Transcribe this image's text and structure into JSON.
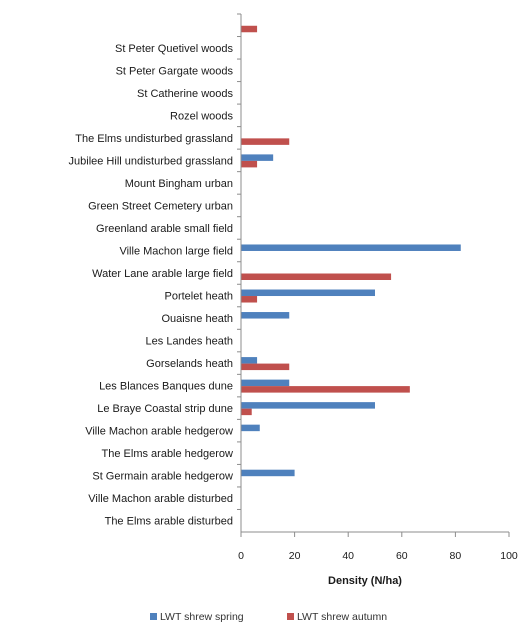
{
  "chart_data": {
    "type": "bar",
    "orientation": "horizontal",
    "title": "",
    "xlabel": "Density (N/ha)",
    "ylabel": "",
    "xlim": [
      0,
      100
    ],
    "xticks": [
      0,
      20,
      40,
      60,
      80,
      100
    ],
    "grid": false,
    "legend_position": "bottom",
    "categories": [
      "",
      "St Peter Quetivel woods",
      "St Peter Gargate woods",
      "St Catherine woods",
      "Rozel woods",
      "The Elms  undisturbed grassland",
      "Jubilee Hill undisturbed grassland",
      "Mount Bingham urban",
      "Green Street Cemetery urban",
      "Greenland arable small field",
      "Ville Machon large field",
      "Water Lane arable large field",
      "Portelet heath",
      "Ouaisne heath",
      "Les Landes heath",
      "Gorselands heath",
      "Les Blances Banques dune",
      "Le Braye Coastal strip dune",
      "Ville Machon  arable hedgerow",
      "The Elms arable hedgerow",
      "St Germain arable hedgerow",
      "Ville Machon arable disturbed",
      "The Elms  arable disturbed"
    ],
    "series": [
      {
        "name": "LWT shrew spring",
        "color": "#4f81bd",
        "values": [
          0,
          0,
          0,
          0,
          0,
          0,
          12,
          0,
          0,
          0,
          82,
          0,
          50,
          18,
          0,
          6,
          18,
          50,
          7,
          0,
          20,
          0,
          0
        ]
      },
      {
        "name": "LWT shrew autumn",
        "color": "#c0504d",
        "values": [
          6,
          0,
          0,
          0,
          0,
          18,
          6,
          0,
          0,
          0,
          0,
          56,
          6,
          0,
          0,
          18,
          63,
          4,
          0,
          0,
          0,
          0,
          0
        ]
      }
    ]
  }
}
